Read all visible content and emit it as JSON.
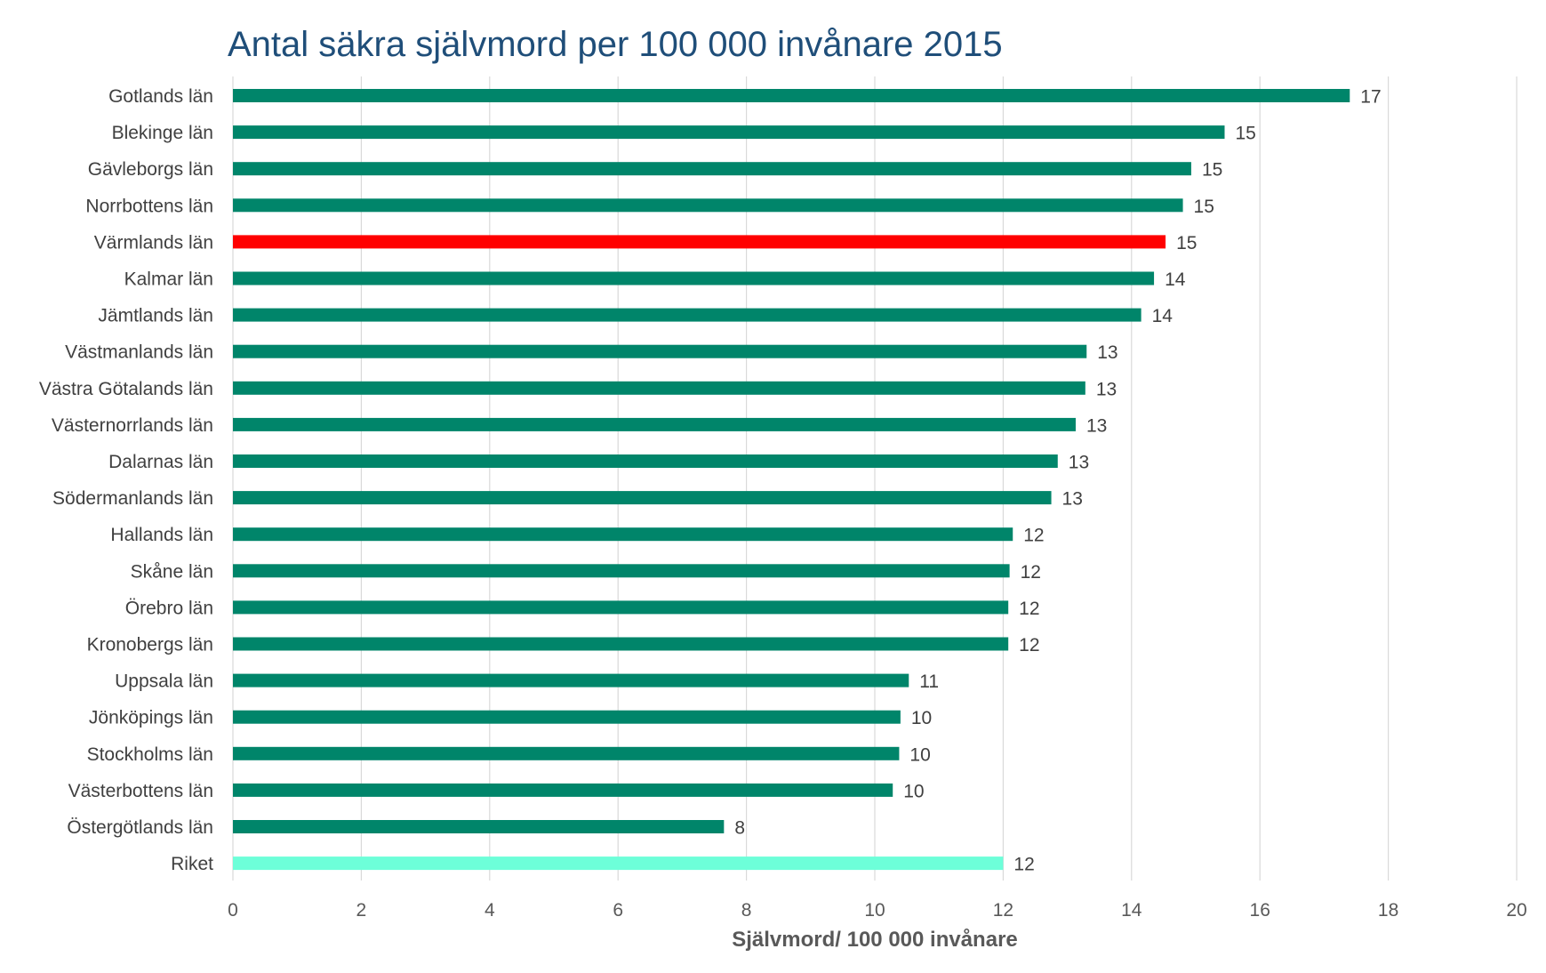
{
  "chart_data": {
    "type": "bar",
    "orientation": "horizontal",
    "title": "Antal säkra självmord per 100 000 invånare 2015",
    "xlabel": "Självmord/ 100 000 invånare",
    "ylabel": "",
    "xlim": [
      0,
      20
    ],
    "x_ticks": [
      "0",
      "2",
      "4",
      "6",
      "8",
      "10",
      "12",
      "14",
      "16",
      "18",
      "20"
    ],
    "grid": "vertical",
    "legend": "none",
    "colors": {
      "default": "#00856a",
      "highlight": "#ff0000",
      "national": "#6dffd9",
      "grid": "#d9d9d9"
    },
    "bars": [
      {
        "category": "Gotlands län",
        "value": 17.4,
        "label": "17",
        "color": "default"
      },
      {
        "category": "Blekinge län",
        "value": 15.45,
        "label": "15",
        "color": "default"
      },
      {
        "category": "Gävleborgs län",
        "value": 14.93,
        "label": "15",
        "color": "default"
      },
      {
        "category": "Norrbottens län",
        "value": 14.8,
        "label": "15",
        "color": "default"
      },
      {
        "category": "Värmlands län",
        "value": 14.53,
        "label": "15",
        "color": "highlight"
      },
      {
        "category": "Kalmar län",
        "value": 14.35,
        "label": "14",
        "color": "default"
      },
      {
        "category": "Jämtlands län",
        "value": 14.15,
        "label": "14",
        "color": "default"
      },
      {
        "category": "Västmanlands län",
        "value": 13.3,
        "label": "13",
        "color": "default"
      },
      {
        "category": "Västra Götalands län",
        "value": 13.28,
        "label": "13",
        "color": "default"
      },
      {
        "category": "Västernorrlands län",
        "value": 13.13,
        "label": "13",
        "color": "default"
      },
      {
        "category": "Dalarnas län",
        "value": 12.85,
        "label": "13",
        "color": "default"
      },
      {
        "category": "Södermanlands län",
        "value": 12.75,
        "label": "13",
        "color": "default"
      },
      {
        "category": "Hallands län",
        "value": 12.15,
        "label": "12",
        "color": "default"
      },
      {
        "category": "Skåne län",
        "value": 12.1,
        "label": "12",
        "color": "default"
      },
      {
        "category": "Örebro län",
        "value": 12.08,
        "label": "12",
        "color": "default"
      },
      {
        "category": "Kronobergs län",
        "value": 12.08,
        "label": "12",
        "color": "default"
      },
      {
        "category": "Uppsala län",
        "value": 10.53,
        "label": "11",
        "color": "default"
      },
      {
        "category": "Jönköpings län",
        "value": 10.4,
        "label": "10",
        "color": "default"
      },
      {
        "category": "Stockholms län",
        "value": 10.38,
        "label": "10",
        "color": "default"
      },
      {
        "category": "Västerbottens län",
        "value": 10.28,
        "label": "10",
        "color": "default"
      },
      {
        "category": "Östergötlands län",
        "value": 7.65,
        "label": "8",
        "color": "default"
      },
      {
        "category": "Riket",
        "value": 12.0,
        "label": "12",
        "color": "national"
      }
    ]
  }
}
